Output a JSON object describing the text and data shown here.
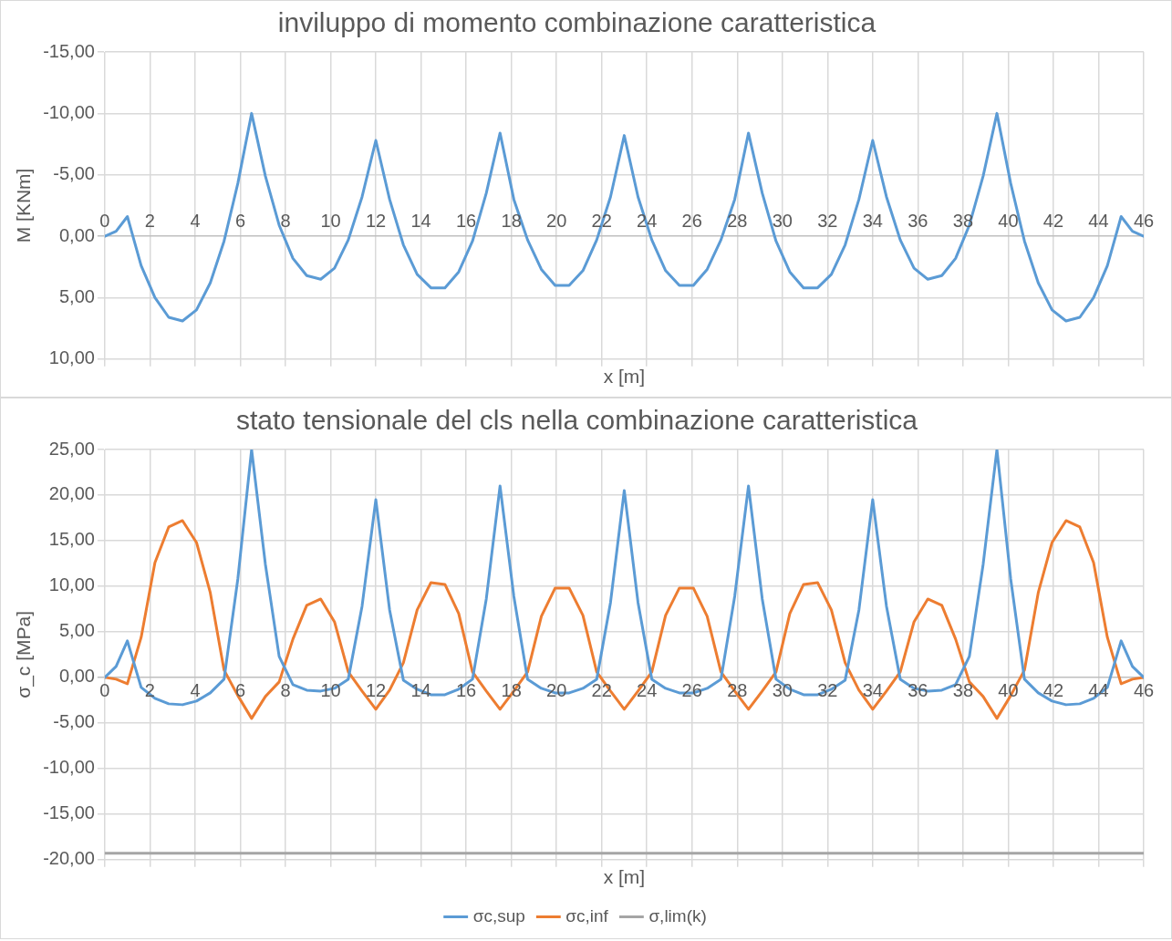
{
  "chart_data": [
    {
      "type": "line",
      "title": "inviluppo di momento combinazione caratteristica",
      "xlabel": "x [m]",
      "ylabel": "M [KNm]",
      "x": [
        0,
        0.5,
        1.0,
        1.61,
        2.22,
        2.83,
        3.44,
        4.06,
        4.67,
        5.28,
        5.89,
        6.5,
        7.11,
        7.72,
        8.33,
        8.94,
        9.56,
        10.17,
        10.78,
        11.39,
        12.0,
        12.61,
        13.22,
        13.83,
        14.44,
        15.06,
        15.67,
        16.28,
        16.89,
        17.5,
        18.11,
        18.72,
        19.33,
        19.94,
        20.56,
        21.17,
        21.78,
        22.39,
        23.0,
        23.61,
        24.22,
        24.83,
        25.44,
        26.06,
        26.67,
        27.28,
        27.89,
        28.5,
        29.11,
        29.72,
        30.33,
        30.94,
        31.56,
        32.17,
        32.78,
        33.39,
        34.0,
        34.61,
        35.22,
        35.83,
        36.44,
        37.06,
        37.67,
        38.28,
        38.89,
        39.5,
        40.11,
        40.72,
        41.33,
        41.94,
        42.56,
        43.17,
        43.78,
        44.39,
        45.0,
        45.5,
        46
      ],
      "series": [
        {
          "color": "#5b9bd5",
          "values": [
            0,
            -0.4,
            -1.6,
            2.4,
            5.0,
            6.6,
            6.9,
            6.0,
            3.8,
            0.4,
            -4.3,
            -10.0,
            -4.9,
            -0.9,
            1.8,
            3.2,
            3.5,
            2.6,
            0.3,
            -3.2,
            -7.8,
            -3.0,
            0.7,
            3.1,
            4.2,
            4.2,
            2.9,
            0.4,
            -3.5,
            -8.4,
            -3.0,
            0.3,
            2.7,
            4.0,
            4.0,
            2.8,
            0.3,
            -3.2,
            -8.2,
            -3.2,
            0.3,
            2.8,
            4.0,
            4.0,
            2.7,
            0.3,
            -3.0,
            -8.4,
            -3.5,
            0.4,
            2.9,
            4.2,
            4.2,
            3.1,
            0.7,
            -3.0,
            -7.8,
            -3.2,
            0.3,
            2.6,
            3.5,
            3.2,
            1.8,
            -0.9,
            -4.9,
            -10.0,
            -4.3,
            0.4,
            3.8,
            6.0,
            6.9,
            6.6,
            5.0,
            2.4,
            -1.6,
            -0.4,
            0
          ]
        }
      ],
      "xlim": [
        0,
        46
      ],
      "xticks": [
        0,
        2,
        4,
        6,
        8,
        10,
        12,
        14,
        16,
        18,
        20,
        22,
        24,
        26,
        28,
        30,
        32,
        34,
        36,
        38,
        40,
        42,
        44,
        46
      ],
      "ylim": [
        10,
        -15
      ],
      "yticks": [
        {
          "value": -15,
          "label": "-15,00"
        },
        {
          "value": -10,
          "label": "-10,00"
        },
        {
          "value": -5,
          "label": "-5,00"
        },
        {
          "value": 0,
          "label": "0,00"
        },
        {
          "value": 5,
          "label": "5,00"
        },
        {
          "value": 10,
          "label": "10,00"
        }
      ],
      "grid": true,
      "marker": "none",
      "line_style": "solid"
    },
    {
      "type": "line",
      "title": "stato tensionale del cls nella combinazione caratteristica",
      "xlabel": "x [m]",
      "ylabel": "σ_c [MPa]",
      "x": [
        0,
        0.5,
        1.0,
        1.61,
        2.22,
        2.83,
        3.44,
        4.06,
        4.67,
        5.28,
        5.89,
        6.5,
        7.11,
        7.72,
        8.33,
        8.94,
        9.56,
        10.17,
        10.78,
        11.39,
        12.0,
        12.61,
        13.22,
        13.83,
        14.44,
        15.06,
        15.67,
        16.28,
        16.89,
        17.5,
        18.11,
        18.72,
        19.33,
        19.94,
        20.56,
        21.17,
        21.78,
        22.39,
        23.0,
        23.61,
        24.22,
        24.83,
        25.44,
        26.06,
        26.67,
        27.28,
        27.89,
        28.5,
        29.11,
        29.72,
        30.33,
        30.94,
        31.56,
        32.17,
        32.78,
        33.39,
        34.0,
        34.61,
        35.22,
        35.83,
        36.44,
        37.06,
        37.67,
        38.28,
        38.89,
        39.5,
        40.11,
        40.72,
        41.33,
        41.94,
        42.56,
        43.17,
        43.78,
        44.39,
        45.0,
        45.5,
        46
      ],
      "series": [
        {
          "name": "σc,sup",
          "color": "#5b9bd5",
          "values": [
            0,
            1.2,
            4.0,
            -1.1,
            -2.3,
            -2.9,
            -3.0,
            -2.6,
            -1.7,
            -0.2,
            10.8,
            25.0,
            12.4,
            2.3,
            -0.8,
            -1.4,
            -1.5,
            -1.2,
            -0.2,
            7.8,
            19.5,
            7.4,
            -0.3,
            -1.3,
            -1.9,
            -1.9,
            -1.3,
            -0.2,
            8.6,
            21.0,
            8.9,
            -0.2,
            -1.2,
            -1.7,
            -1.7,
            -1.2,
            -0.2,
            8.2,
            20.5,
            8.2,
            -0.2,
            -1.2,
            -1.7,
            -1.7,
            -1.2,
            -0.2,
            8.9,
            21.0,
            8.6,
            -0.2,
            -1.3,
            -1.9,
            -1.9,
            -1.3,
            -0.3,
            7.4,
            19.5,
            7.8,
            -0.2,
            -1.2,
            -1.5,
            -1.4,
            -0.8,
            2.3,
            12.4,
            25.0,
            10.8,
            -0.2,
            -1.7,
            -2.6,
            -3.0,
            -2.9,
            -2.3,
            -1.1,
            4.0,
            1.2,
            0
          ]
        },
        {
          "name": "σc,inf",
          "color": "#ed7d31",
          "values": [
            0,
            -0.2,
            -0.7,
            4.4,
            12.6,
            16.5,
            17.2,
            14.8,
            9.3,
            0.8,
            -2.0,
            -4.5,
            -2.1,
            -0.5,
            4.2,
            7.9,
            8.6,
            6.1,
            0.6,
            -1.5,
            -3.5,
            -1.4,
            1.6,
            7.4,
            10.4,
            10.2,
            7.0,
            0.6,
            -1.5,
            -3.5,
            -1.5,
            0.6,
            6.7,
            9.8,
            9.8,
            6.8,
            0.6,
            -1.5,
            -3.5,
            -1.5,
            0.6,
            6.8,
            9.8,
            9.8,
            6.7,
            0.6,
            -1.5,
            -3.5,
            -1.5,
            0.6,
            7.0,
            10.2,
            10.4,
            7.4,
            1.6,
            -1.4,
            -3.5,
            -1.5,
            0.6,
            6.1,
            8.6,
            7.9,
            4.2,
            -0.5,
            -2.1,
            -4.5,
            -2.0,
            0.8,
            9.3,
            14.8,
            17.2,
            16.5,
            12.6,
            4.4,
            -0.7,
            -0.2,
            0
          ]
        },
        {
          "name": "σ,lim(k)",
          "color": "#a5a5a5",
          "x": [
            0,
            46
          ],
          "values": [
            -19.3,
            -19.3
          ]
        }
      ],
      "xlim": [
        0,
        46
      ],
      "xticks": [
        0,
        2,
        4,
        6,
        8,
        10,
        12,
        14,
        16,
        18,
        20,
        22,
        24,
        26,
        28,
        30,
        32,
        34,
        36,
        38,
        40,
        42,
        44,
        46
      ],
      "ylim": [
        -20,
        25
      ],
      "yticks": [
        {
          "value": -20,
          "label": "-20,00"
        },
        {
          "value": -15,
          "label": "-15,00"
        },
        {
          "value": -10,
          "label": "-10,00"
        },
        {
          "value": -5,
          "label": "-5,00"
        },
        {
          "value": 0,
          "label": "0,00"
        },
        {
          "value": 5,
          "label": "5,00"
        },
        {
          "value": 10,
          "label": "10,00"
        },
        {
          "value": 15,
          "label": "15,00"
        },
        {
          "value": 20,
          "label": "20,00"
        },
        {
          "value": 25,
          "label": "25,00"
        }
      ],
      "grid": true,
      "legend": "bottom",
      "marker": "none",
      "line_style": "solid"
    }
  ]
}
